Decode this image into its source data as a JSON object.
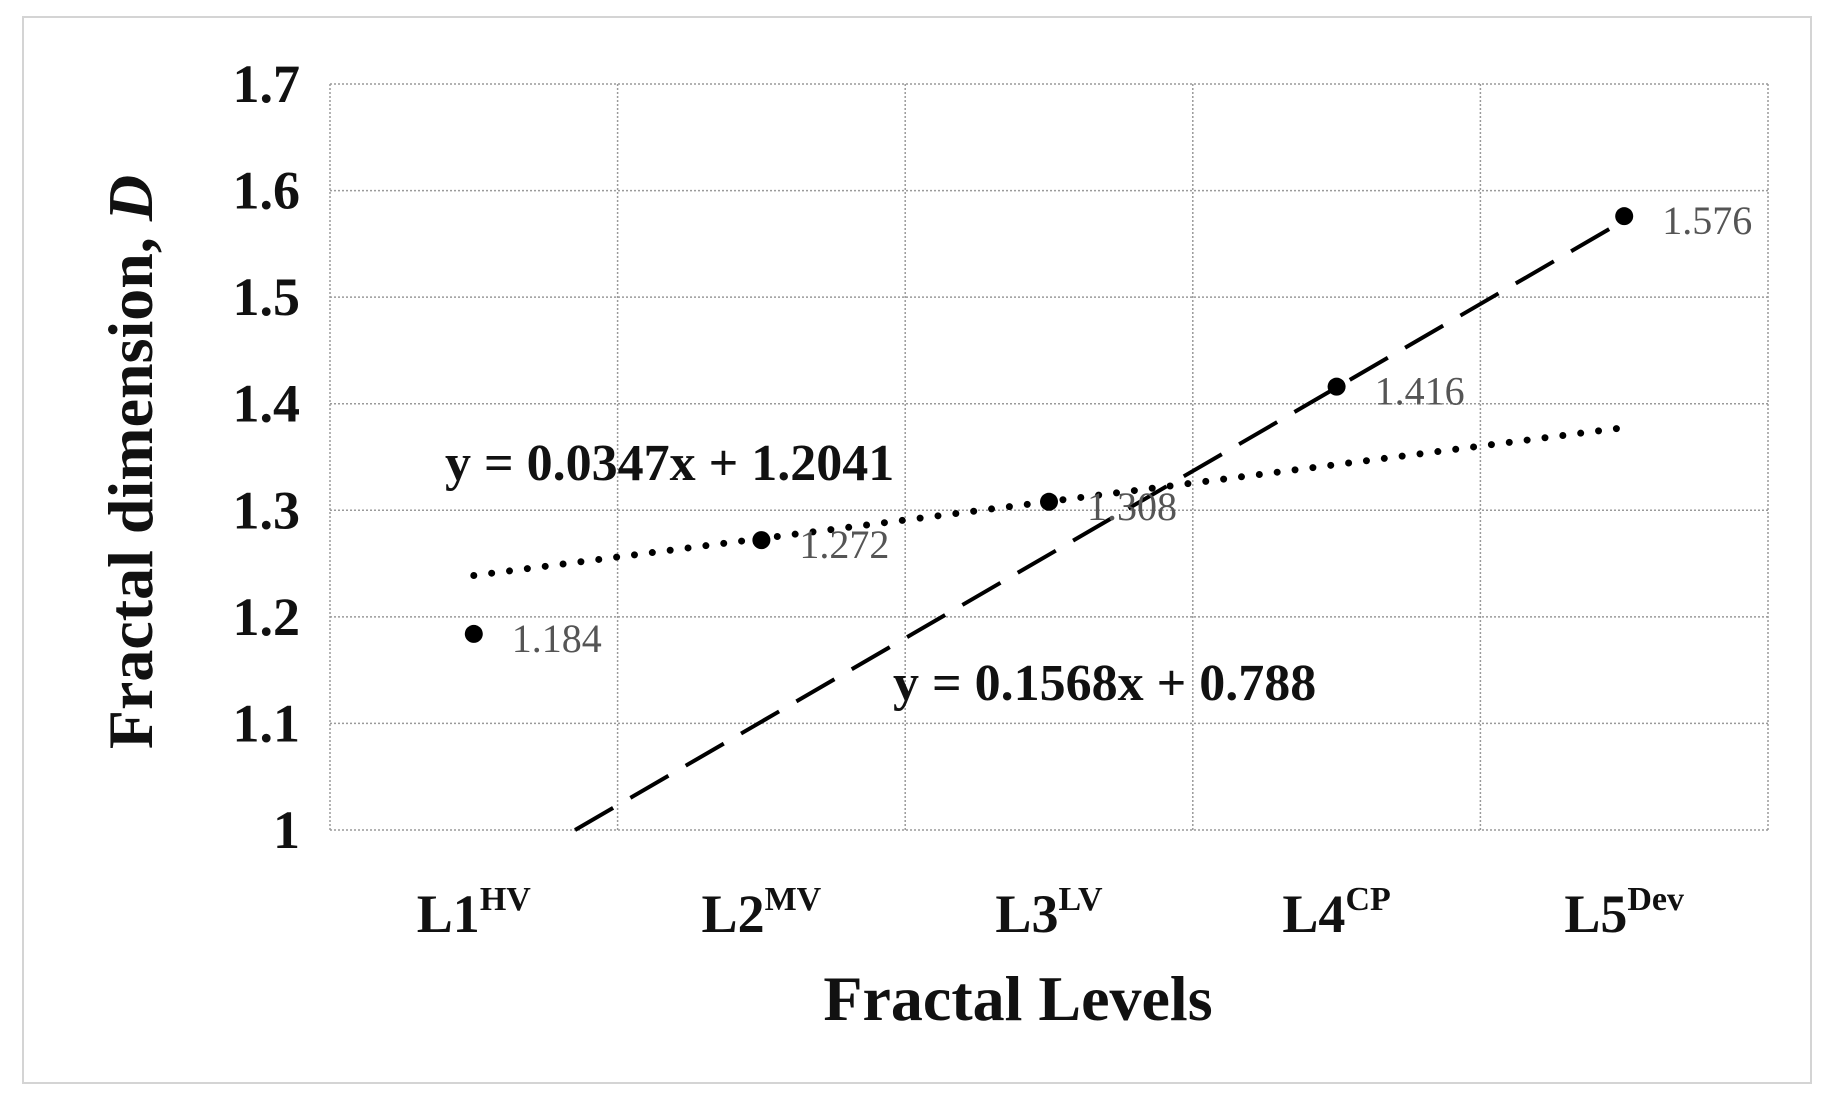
{
  "chart_data": {
    "type": "scatter",
    "title": "",
    "xlabel": "Fractal Levels",
    "ylabel": "Fractal dimension, ",
    "ylabel_symbol": "D",
    "ylim": [
      1,
      1.7
    ],
    "yticks": [
      "1",
      "1.1",
      "1.2",
      "1.3",
      "1.4",
      "1.5",
      "1.6",
      "1.7"
    ],
    "categories": [
      {
        "base": "L1",
        "sup": "HV"
      },
      {
        "base": "L2",
        "sup": "MV"
      },
      {
        "base": "L3",
        "sup": "LV"
      },
      {
        "base": "L4",
        "sup": "CP"
      },
      {
        "base": "L5",
        "sup": "Dev"
      }
    ],
    "x": [
      1,
      2,
      3,
      4,
      5
    ],
    "values": [
      1.184,
      1.272,
      1.308,
      1.416,
      1.576
    ],
    "point_labels": [
      "1.184",
      "1.272",
      "1.308",
      "1.416",
      "1.576"
    ],
    "grid": true,
    "trendlines": [
      {
        "style": "dotted",
        "slope": 0.0347,
        "intercept": 1.2041,
        "equation": "y = 0.0347x + 1.2041"
      },
      {
        "style": "dashed",
        "slope": 0.1568,
        "intercept": 0.788,
        "equation": "y = 0.1568x + 0.788"
      }
    ],
    "colors": {
      "points": "#000000",
      "labels": "#555555",
      "grid": "#9a9a9a"
    }
  }
}
